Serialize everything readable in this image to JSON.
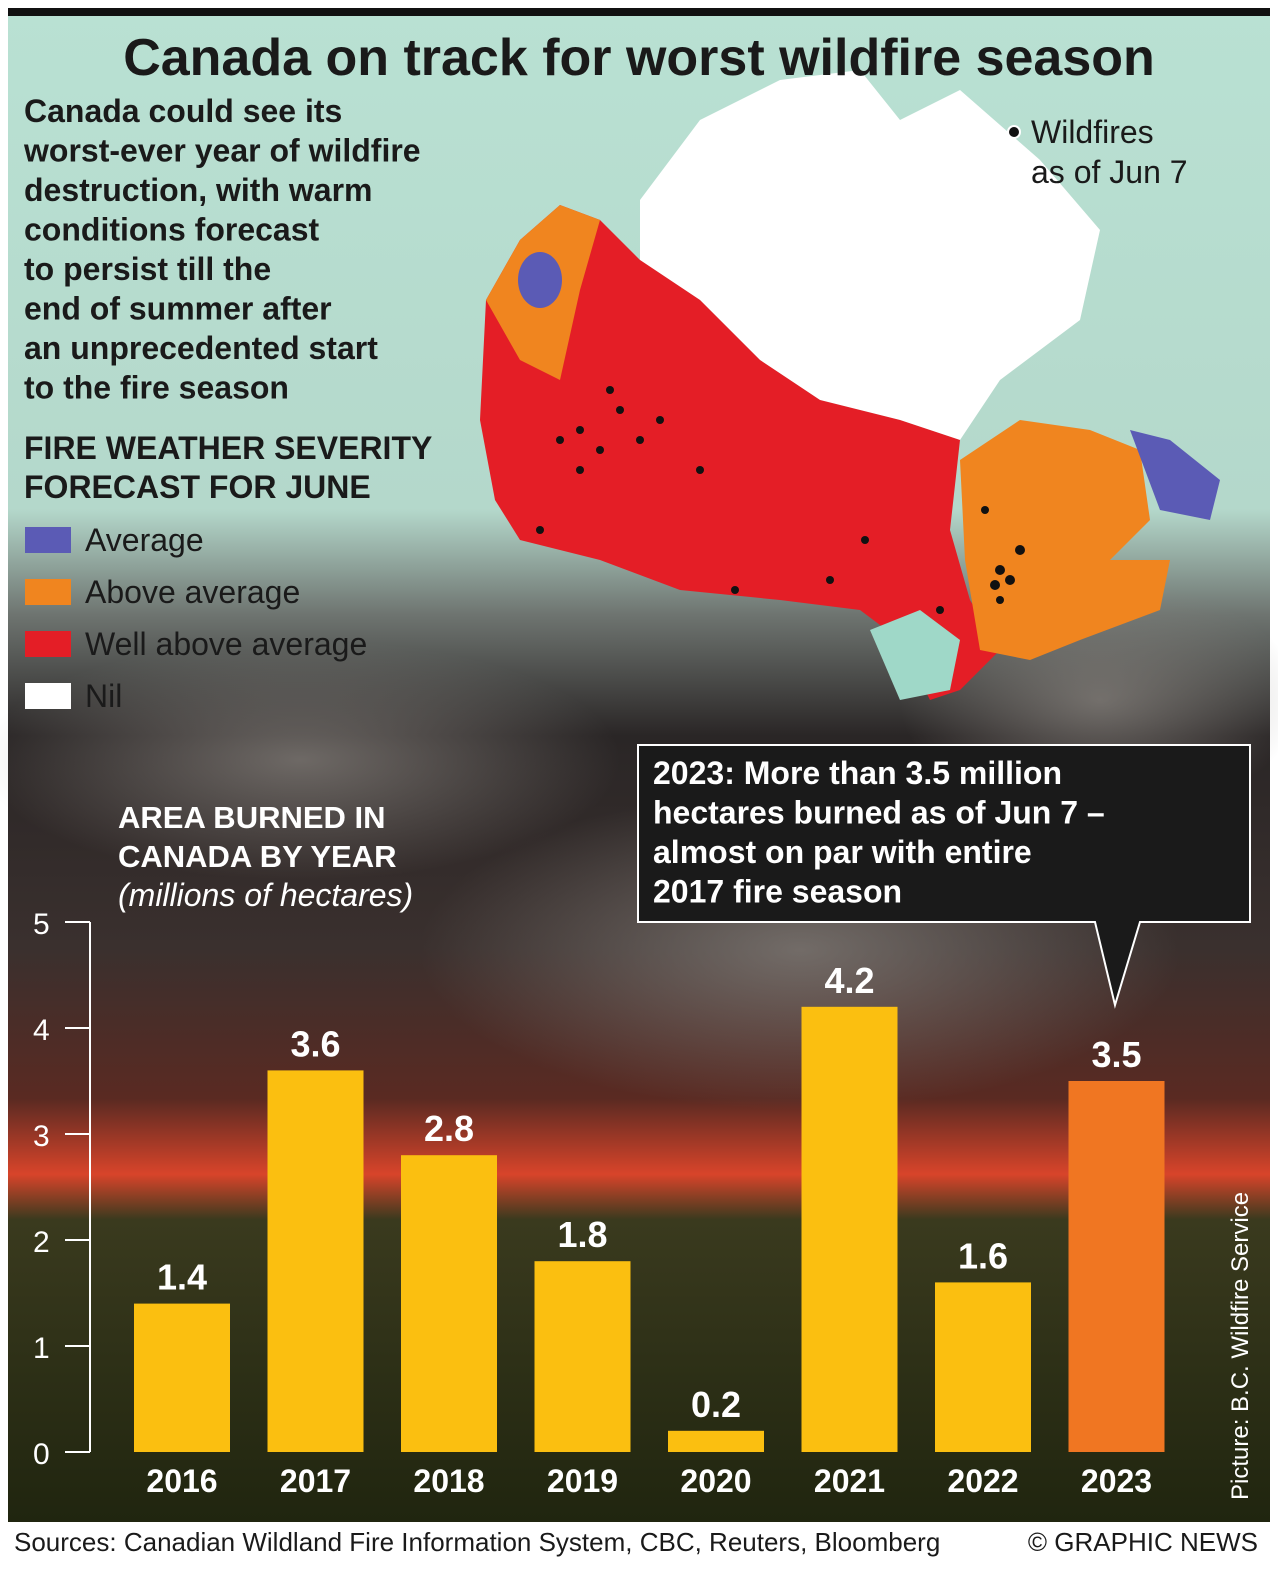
{
  "header": {
    "title": "Canada on track for worst wildfire season",
    "intro": [
      "Canada could see its",
      "worst-ever year of wildfire",
      "destruction, with warm",
      "conditions forecast",
      "to persist till the",
      "end of summer after",
      "an unprecedented start",
      "to the fire season"
    ]
  },
  "map": {
    "legend_title": [
      "Fire Weather Severity",
      "Forecast for June"
    ],
    "legend": [
      {
        "label": "Average",
        "color": "#5b5bb5"
      },
      {
        "label": "Above average",
        "color": "#f0851f"
      },
      {
        "label": "Well above average",
        "color": "#e41e26"
      },
      {
        "label": "Nil",
        "color": "#ffffff"
      }
    ],
    "wildfires_label": [
      "Wildfires",
      "as of Jun 7"
    ]
  },
  "chart_data": {
    "type": "bar",
    "title": [
      "Area Burned in",
      "Canada by Year"
    ],
    "subtitle": "(millions of hectares)",
    "categories": [
      "2016",
      "2017",
      "2018",
      "2019",
      "2020",
      "2021",
      "2022",
      "2023"
    ],
    "values": [
      1.4,
      3.6,
      2.8,
      1.8,
      0.2,
      4.2,
      1.6,
      3.5
    ],
    "colors": [
      "#fbbf10",
      "#fbbf10",
      "#fbbf10",
      "#fbbf10",
      "#fbbf10",
      "#fbbf10",
      "#fbbf10",
      "#f07622"
    ],
    "ylim": [
      0,
      5
    ],
    "yticks": [
      0,
      1,
      2,
      3,
      4,
      5
    ],
    "annotation": [
      "2023: More than 3.5 million",
      "hectares burned as of Jun 7 –",
      "almost on par with entire",
      "2017 fire season"
    ]
  },
  "footer": {
    "sources": "Sources: Canadian Wildland Fire Information System, CBC, Reuters, Bloomberg",
    "credit": "© GRAPHIC NEWS",
    "picture": "Picture: B.C. Wildfire Service"
  }
}
